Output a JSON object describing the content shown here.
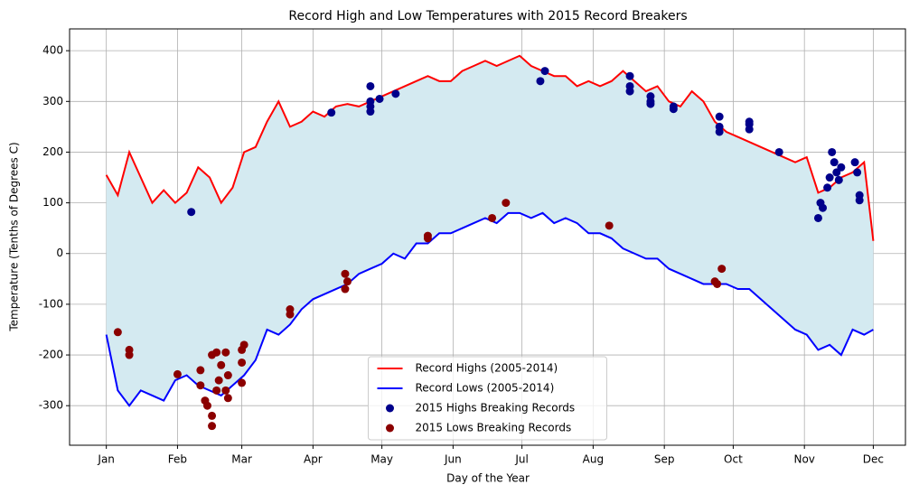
{
  "chart_data": {
    "type": "line",
    "title": "Record High and Low Temperatures with 2015 Record Breakers",
    "xlabel": "Day of the Year",
    "ylabel": "Temperature (Tenths of Degrees C)",
    "xlim": [
      -16,
      348
    ],
    "ylim": [
      -378,
      443
    ],
    "xticks": [
      {
        "value": 0,
        "label": "Jan"
      },
      {
        "value": 31,
        "label": "Feb"
      },
      {
        "value": 59,
        "label": "Mar"
      },
      {
        "value": 90,
        "label": "Apr"
      },
      {
        "value": 120,
        "label": "May"
      },
      {
        "value": 151,
        "label": "Jun"
      },
      {
        "value": 181,
        "label": "Jul"
      },
      {
        "value": 212,
        "label": "Aug"
      },
      {
        "value": 243,
        "label": "Sep"
      },
      {
        "value": 273,
        "label": "Oct"
      },
      {
        "value": 304,
        "label": "Nov"
      },
      {
        "value": 334,
        "label": "Dec"
      }
    ],
    "yticks": [
      -300,
      -200,
      -100,
      0,
      100,
      200,
      300,
      400
    ],
    "grid": true,
    "legend": "lower center",
    "fill_between": "#d4eaf1",
    "series": [
      {
        "name": "Record Highs (2005-2014)",
        "type": "line",
        "color": "#ff0000",
        "x": [
          0,
          5,
          10,
          15,
          20,
          25,
          30,
          35,
          40,
          45,
          50,
          55,
          60,
          65,
          70,
          75,
          80,
          85,
          90,
          95,
          100,
          105,
          110,
          115,
          120,
          125,
          130,
          135,
          140,
          145,
          150,
          155,
          160,
          165,
          170,
          175,
          180,
          185,
          190,
          195,
          200,
          205,
          210,
          215,
          220,
          225,
          230,
          235,
          240,
          245,
          250,
          255,
          260,
          265,
          270,
          275,
          280,
          285,
          290,
          295,
          300,
          305,
          310,
          315,
          320,
          325,
          330,
          334
        ],
        "values": [
          155,
          115,
          200,
          150,
          100,
          125,
          100,
          120,
          170,
          150,
          100,
          130,
          200,
          210,
          260,
          300,
          250,
          260,
          280,
          270,
          290,
          295,
          290,
          300,
          310,
          320,
          330,
          340,
          350,
          340,
          340,
          360,
          370,
          380,
          370,
          380,
          390,
          370,
          360,
          350,
          350,
          330,
          340,
          330,
          340,
          360,
          340,
          320,
          330,
          300,
          290,
          320,
          300,
          260,
          240,
          230,
          220,
          210,
          200,
          190,
          180,
          190,
          120,
          130,
          150,
          160,
          180,
          25
        ]
      },
      {
        "name": "Record Lows (2005-2014)",
        "type": "line",
        "color": "#0000ff",
        "x": [
          0,
          5,
          10,
          15,
          20,
          25,
          30,
          35,
          40,
          45,
          50,
          55,
          60,
          65,
          70,
          75,
          80,
          85,
          90,
          95,
          100,
          105,
          110,
          115,
          120,
          125,
          130,
          135,
          140,
          145,
          150,
          155,
          160,
          165,
          170,
          175,
          180,
          185,
          190,
          195,
          200,
          205,
          210,
          215,
          220,
          225,
          230,
          235,
          240,
          245,
          250,
          255,
          260,
          265,
          270,
          275,
          280,
          285,
          290,
          295,
          300,
          305,
          310,
          315,
          320,
          325,
          330,
          334
        ],
        "values": [
          -160,
          -270,
          -300,
          -270,
          -280,
          -290,
          -250,
          -240,
          -260,
          -270,
          -280,
          -260,
          -240,
          -210,
          -150,
          -160,
          -140,
          -110,
          -90,
          -80,
          -70,
          -60,
          -40,
          -30,
          -20,
          0,
          -10,
          20,
          20,
          40,
          40,
          50,
          60,
          70,
          60,
          80,
          80,
          70,
          80,
          60,
          70,
          60,
          40,
          40,
          30,
          10,
          0,
          -10,
          -10,
          -30,
          -40,
          -50,
          -60,
          -60,
          -60,
          -70,
          -70,
          -90,
          -110,
          -130,
          -150,
          -160,
          -190,
          -180,
          -200,
          -150,
          -160,
          -150
        ]
      },
      {
        "name": "2015 Highs Breaking Records",
        "type": "scatter",
        "color": "#00008b",
        "x": [
          37,
          98,
          115,
          115,
          115,
          115,
          119,
          126,
          189,
          191,
          228,
          228,
          228,
          237,
          237,
          237,
          247,
          247,
          267,
          267,
          267,
          280,
          280,
          280,
          293,
          310,
          311,
          312,
          314,
          315,
          316,
          317,
          318,
          319,
          320,
          326,
          327,
          328,
          328
        ],
        "values": [
          82,
          278,
          330,
          300,
          290,
          280,
          305,
          315,
          340,
          360,
          350,
          330,
          320,
          310,
          300,
          295,
          290,
          285,
          270,
          250,
          240,
          260,
          255,
          245,
          200,
          70,
          100,
          90,
          130,
          150,
          200,
          180,
          160,
          145,
          170,
          180,
          160,
          115,
          105
        ]
      },
      {
        "name": "2015 Lows Breaking Records",
        "type": "scatter",
        "color": "#8b0000",
        "x": [
          5,
          10,
          10,
          31,
          41,
          41,
          43,
          44,
          46,
          46,
          46,
          48,
          48,
          49,
          50,
          52,
          52,
          53,
          53,
          59,
          59,
          59,
          60,
          80,
          80,
          104,
          104,
          105,
          140,
          140,
          168,
          174,
          219,
          265,
          266,
          268
        ],
        "values": [
          -155,
          -190,
          -200,
          -238,
          -230,
          -260,
          -290,
          -300,
          -320,
          -340,
          -200,
          -270,
          -195,
          -250,
          -220,
          -270,
          -195,
          -285,
          -240,
          -215,
          -255,
          -190,
          -180,
          -110,
          -120,
          -40,
          -70,
          -55,
          35,
          30,
          70,
          100,
          55,
          -55,
          -60,
          -30
        ]
      }
    ]
  }
}
